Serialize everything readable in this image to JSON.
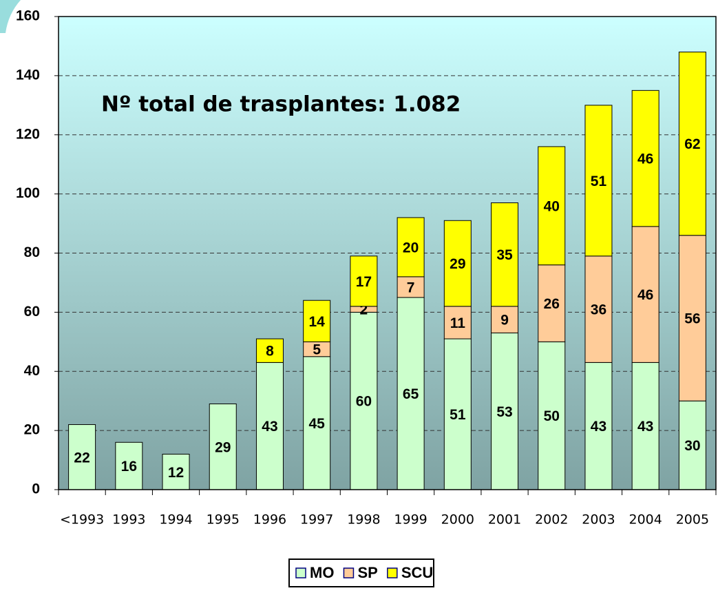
{
  "chart_data": {
    "type": "stacked_bar",
    "annotation": "Nº total de trasplantes: 1.082",
    "categories": [
      "<1993",
      "1993",
      "1994",
      "1995",
      "1996",
      "1997",
      "1998",
      "1999",
      "2000",
      "2001",
      "2002",
      "2003",
      "2004",
      "2005"
    ],
    "series": [
      {
        "name": "MO",
        "color": "#ccffcc",
        "values": [
          22,
          16,
          12,
          29,
          43,
          45,
          60,
          65,
          51,
          53,
          50,
          43,
          43,
          30
        ]
      },
      {
        "name": "SP",
        "color": "#ffcc99",
        "values": [
          null,
          null,
          null,
          null,
          null,
          5,
          2,
          7,
          11,
          9,
          26,
          36,
          46,
          56
        ]
      },
      {
        "name": "SCU",
        "color": "#ffff00",
        "values": [
          null,
          null,
          null,
          null,
          8,
          14,
          17,
          20,
          29,
          35,
          40,
          51,
          46,
          62
        ]
      }
    ],
    "ylim": [
      0,
      160
    ],
    "yticks": [
      0,
      20,
      40,
      60,
      80,
      100,
      120,
      140,
      160
    ],
    "grid": true,
    "legend": "bottom"
  }
}
